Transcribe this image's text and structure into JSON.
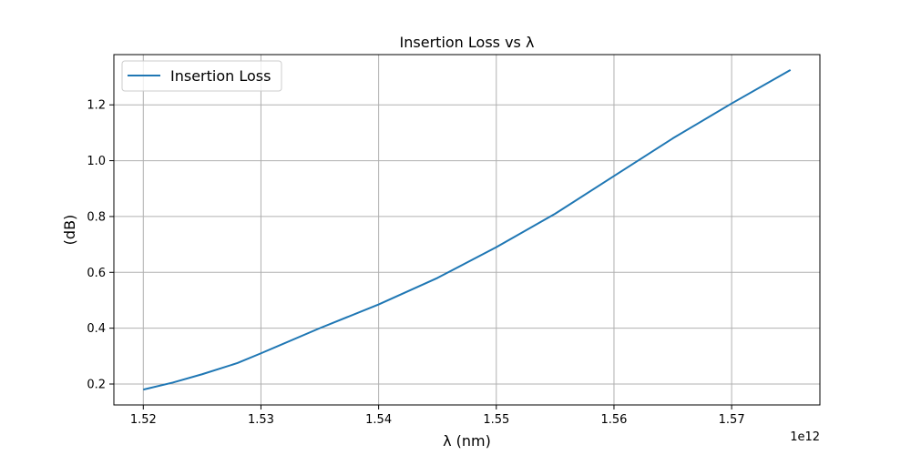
{
  "chart_data": {
    "type": "line",
    "title": "Insertion Loss vs λ",
    "xlabel": "λ (nm)",
    "ylabel": "(dB)",
    "x_offset_label": "1e12",
    "xlim": [
      1.5175,
      1.5775
    ],
    "ylim": [
      0.125,
      1.38
    ],
    "x_ticks": [
      1.52,
      1.53,
      1.54,
      1.55,
      1.56,
      1.57
    ],
    "x_tick_labels": [
      "1.52",
      "1.53",
      "1.54",
      "1.55",
      "1.56",
      "1.57"
    ],
    "y_ticks": [
      0.2,
      0.4,
      0.6,
      0.8,
      1.0,
      1.2
    ],
    "y_tick_labels": [
      "0.2",
      "0.4",
      "0.6",
      "0.8",
      "1.0",
      "1.2"
    ],
    "grid": true,
    "legend_position": "top-left",
    "series": [
      {
        "name": "Insertion Loss",
        "color": "#1f77b4",
        "x": [
          1.52,
          1.5225,
          1.525,
          1.528,
          1.53,
          1.535,
          1.54,
          1.545,
          1.55,
          1.555,
          1.56,
          1.565,
          1.57,
          1.575
        ],
        "y": [
          0.18,
          0.205,
          0.235,
          0.275,
          0.31,
          0.4,
          0.485,
          0.58,
          0.69,
          0.81,
          0.945,
          1.08,
          1.205,
          1.325
        ]
      }
    ]
  }
}
